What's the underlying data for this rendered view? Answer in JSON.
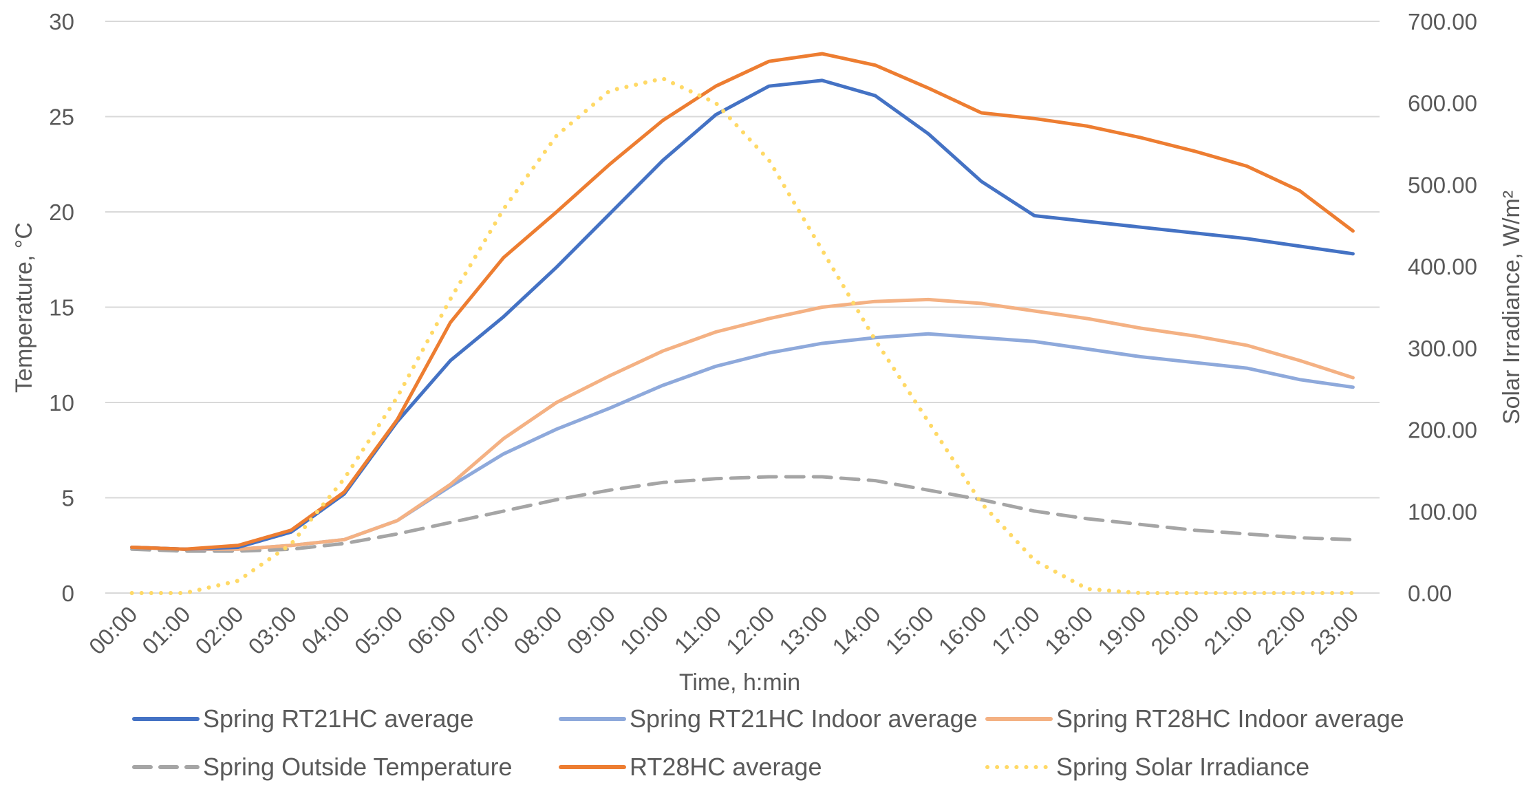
{
  "chart_data": {
    "type": "line",
    "xlabel": "Time, h:min",
    "ylabel": "Temperature, °C",
    "y2label": "Solar Irradiance, W/m²",
    "categories": [
      "00:00",
      "01:00",
      "02:00",
      "03:00",
      "04:00",
      "05:00",
      "06:00",
      "07:00",
      "08:00",
      "09:00",
      "10:00",
      "11:00",
      "12:00",
      "13:00",
      "14:00",
      "15:00",
      "16:00",
      "17:00",
      "18:00",
      "19:00",
      "20:00",
      "21:00",
      "22:00",
      "23:00"
    ],
    "ylim": [
      0,
      30
    ],
    "yticks": [
      0,
      5,
      10,
      15,
      20,
      25,
      30
    ],
    "y2lim": [
      0,
      700
    ],
    "y2ticks": [
      "0.00",
      "100.00",
      "200.00",
      "300.00",
      "400.00",
      "500.00",
      "600.00",
      "700.00"
    ],
    "grid": true,
    "legend_position": "bottom",
    "series": [
      {
        "name": "Spring RT21HC average",
        "axis": "left",
        "color": "#4472C4",
        "style": "solid",
        "values": [
          2.4,
          2.3,
          2.4,
          3.2,
          5.2,
          9.0,
          12.2,
          14.5,
          17.1,
          19.9,
          22.7,
          25.1,
          26.6,
          26.9,
          26.1,
          24.1,
          21.6,
          19.8,
          19.5,
          19.2,
          18.9,
          18.6,
          18.2,
          17.8
        ]
      },
      {
        "name": "Spring RT21HC Indoor average",
        "axis": "left",
        "color": "#8EA9DB",
        "style": "solid",
        "values": [
          2.4,
          2.3,
          2.3,
          2.5,
          2.8,
          3.8,
          5.6,
          7.3,
          8.6,
          9.7,
          10.9,
          11.9,
          12.6,
          13.1,
          13.4,
          13.6,
          13.4,
          13.2,
          12.8,
          12.4,
          12.1,
          11.8,
          11.2,
          10.8
        ]
      },
      {
        "name": "Spring RT28HC Indoor average",
        "axis": "left",
        "color": "#F4B183",
        "style": "solid",
        "values": [
          2.4,
          2.3,
          2.3,
          2.5,
          2.8,
          3.8,
          5.7,
          8.1,
          10.0,
          11.4,
          12.7,
          13.7,
          14.4,
          15.0,
          15.3,
          15.4,
          15.2,
          14.8,
          14.4,
          13.9,
          13.5,
          13.0,
          12.2,
          11.3
        ]
      },
      {
        "name": "Spring Outside Temperature",
        "axis": "left",
        "color": "#A5A5A5",
        "style": "dashed",
        "values": [
          2.3,
          2.2,
          2.2,
          2.3,
          2.6,
          3.1,
          3.7,
          4.3,
          4.9,
          5.4,
          5.8,
          6.0,
          6.1,
          6.1,
          5.9,
          5.4,
          4.9,
          4.3,
          3.9,
          3.6,
          3.3,
          3.1,
          2.9,
          2.8
        ]
      },
      {
        "name": "RT28HC average",
        "axis": "left",
        "color": "#ED7D31",
        "style": "solid",
        "values": [
          2.4,
          2.3,
          2.5,
          3.3,
          5.3,
          9.1,
          14.2,
          17.6,
          20.0,
          22.5,
          24.8,
          26.6,
          27.9,
          28.3,
          27.7,
          26.5,
          25.2,
          24.9,
          24.5,
          23.9,
          23.2,
          22.4,
          21.1,
          19.0
        ]
      },
      {
        "name": "Spring Solar Irradiance",
        "axis": "right",
        "color": "#FFD966",
        "style": "dotted",
        "values": [
          0,
          0,
          15,
          60,
          140,
          240,
          360,
          470,
          560,
          615,
          630,
          600,
          530,
          420,
          310,
          210,
          110,
          40,
          5,
          0,
          0,
          0,
          0,
          0
        ]
      }
    ]
  }
}
